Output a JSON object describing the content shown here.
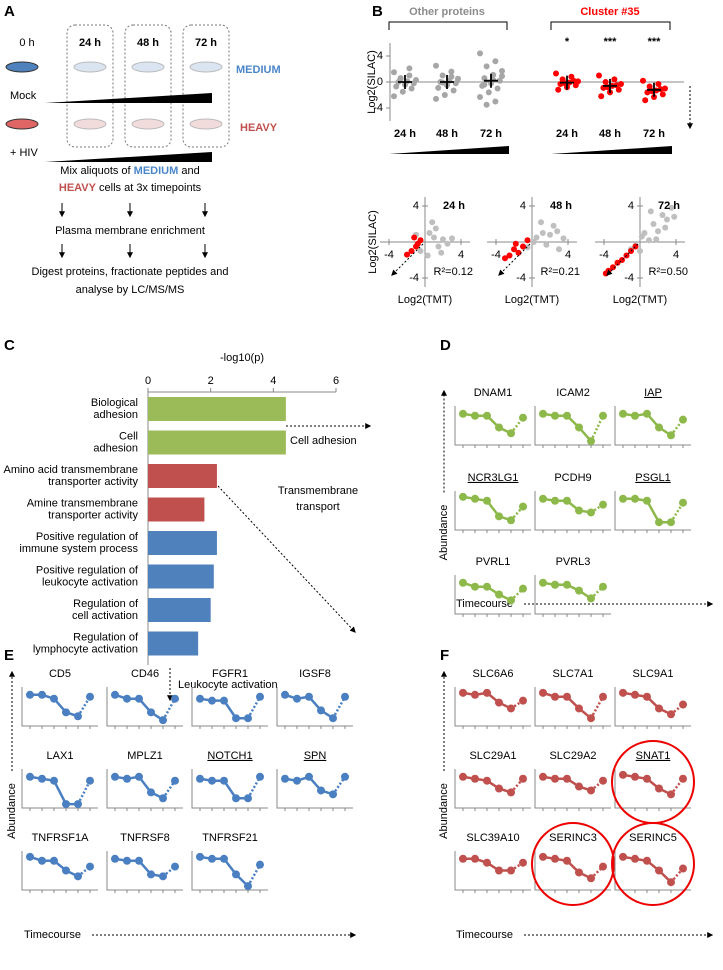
{
  "panel_labels": [
    "A",
    "B",
    "C",
    "D",
    "E",
    "F"
  ],
  "panel_a": {
    "times": [
      "0 h",
      "24 h",
      "48 h",
      "72 h"
    ],
    "conditions": [
      "Mock",
      "+ HIV"
    ],
    "labels": [
      "MEDIUM",
      "HEAVY"
    ],
    "mix_line1": [
      "Mix aliquots of ",
      "MEDIUM",
      " and"
    ],
    "mix_line2": [
      "HEAVY",
      " cells at 3x timepoints"
    ],
    "steps": [
      "Plasma membrane enrichment",
      "Digest proteins, fractionate peptides and",
      "analyse by LC/MS/MS"
    ]
  },
  "chart_data": [
    {
      "type": "strip",
      "y_label": "Log2(SILAC)",
      "ylim": [
        -6,
        6
      ],
      "yticks": [
        -4,
        0,
        4
      ],
      "categories": [
        "24 h",
        "48 h",
        "72 h"
      ],
      "series": [
        {
          "name": "Other proteins",
          "color": "#a6a6a6",
          "values": [
            [
              1.5,
              1,
              0.6,
              0.3,
              0.1,
              0,
              -0.2,
              -0.4,
              -0.7,
              -1,
              -1.5,
              -2.2,
              2.1,
              0.5
            ],
            [
              2.5,
              1.6,
              1,
              0.5,
              0.2,
              0,
              -0.2,
              -0.5,
              -0.9,
              -1.3,
              -2,
              -2.6,
              0.8,
              -0.1
            ],
            [
              4.4,
              3.2,
              2.4,
              1.7,
              1.1,
              0.6,
              0.2,
              -0.2,
              -0.6,
              -1,
              -1.6,
              -2.3,
              -3,
              -3.5,
              0.9,
              0.3,
              -0.4
            ]
          ],
          "means": [
            0,
            0,
            0.2
          ]
        },
        {
          "name": "Cluster #35",
          "color": "#ff0000",
          "values": [
            [
              1.3,
              0.8,
              0.4,
              0.1,
              -0.1,
              -0.3,
              -0.5,
              -0.8,
              -1.2,
              0.2,
              -0.2
            ],
            [
              1,
              0.4,
              0,
              -0.3,
              -0.6,
              -0.9,
              -1.2,
              -1.6,
              -2.2,
              -0.5,
              -0.8
            ],
            [
              0.2,
              -0.3,
              -0.7,
              -1,
              -1.3,
              -1.6,
              -1.9,
              -2.3,
              -2.8,
              -1.1,
              -1.4
            ]
          ],
          "means": [
            -0.1,
            -0.6,
            -1.2
          ],
          "significance": [
            "*",
            "***",
            "***"
          ]
        }
      ]
    },
    {
      "type": "scatter",
      "title": "24 h",
      "annotation": "R²=0.12",
      "x_label": "Log2(TMT)",
      "y_label": "Log2(SILAC)",
      "xlim": [
        -5,
        5
      ],
      "ylim": [
        -5,
        5
      ],
      "xticks": [
        -4,
        4
      ],
      "yticks": [
        -4,
        4
      ],
      "series": [
        {
          "color": "#bfbfbf",
          "x": [
            0.5,
            1,
            1.5,
            2,
            -0.5,
            1.2,
            2.5,
            0.3,
            0.8,
            -1,
            1.8,
            3
          ],
          "y": [
            1,
            0.5,
            -0.5,
            0.3,
            -1,
            1.5,
            -0.2,
            -1.5,
            2.2,
            0.8,
            -1.2,
            0.4
          ]
        },
        {
          "color": "#ff0000",
          "x": [
            -1,
            -1.5,
            -0.5,
            -1.2,
            -2,
            -0.8
          ],
          "y": [
            -0.5,
            -1,
            0.2,
            0.5,
            -1.4,
            -0.2
          ]
        }
      ]
    },
    {
      "type": "scatter",
      "title": "48 h",
      "annotation": "R²=0.21",
      "x_label": "Log2(TMT)",
      "xlim": [
        -5,
        5
      ],
      "ylim": [
        -5,
        5
      ],
      "xticks": [
        -4,
        4
      ],
      "yticks": [
        -4,
        4
      ],
      "series": [
        {
          "color": "#bfbfbf",
          "x": [
            0.5,
            1.2,
            2,
            2.8,
            3.5,
            1,
            1.6,
            -0.5,
            2.4,
            0.2,
            3
          ],
          "y": [
            0.5,
            1,
            0.8,
            1.2,
            0.4,
            2.2,
            -0.3,
            -0.6,
            1.8,
            0,
            -0.8
          ]
        },
        {
          "color": "#ff0000",
          "x": [
            -1,
            -2,
            -2.5,
            -1.5,
            -3,
            -0.5,
            -1.8
          ],
          "y": [
            -0.5,
            -0.8,
            -1.5,
            -1.2,
            -1.8,
            0.2,
            -0.2
          ]
        }
      ]
    },
    {
      "type": "scatter",
      "title": "72 h",
      "annotation": "R²=0.50",
      "x_label": "Log2(TMT)",
      "xlim": [
        -5,
        5
      ],
      "ylim": [
        -5,
        5
      ],
      "xticks": [
        -4,
        4
      ],
      "yticks": [
        -4,
        4
      ],
      "series": [
        {
          "color": "#bfbfbf",
          "x": [
            0.5,
            1.5,
            2.5,
            3.5,
            1,
            2,
            3,
            -0.5,
            0.2,
            1.8,
            2.8,
            3.8,
            0,
            -1,
            1.2
          ],
          "y": [
            1,
            2,
            3,
            3.8,
            0.2,
            1.2,
            2.5,
            -0.4,
            0.6,
            0.3,
            1.6,
            2.8,
            -1,
            -0.8,
            3.4
          ]
        },
        {
          "color": "#ff0000",
          "x": [
            -1,
            -2,
            -3,
            -3.5,
            -1.5,
            -2.5,
            -3.8,
            -0.5
          ],
          "y": [
            -1,
            -2,
            -2.8,
            -3.2,
            -1.5,
            -2.3,
            -3.5,
            -0.5
          ]
        }
      ]
    },
    {
      "type": "bar",
      "orientation": "horizontal",
      "title": "-log10(p)",
      "xlim": [
        0,
        6
      ],
      "xticks": [
        0,
        2,
        4,
        6
      ],
      "categories": [
        [
          "Biological",
          "adhesion"
        ],
        [
          "Cell",
          "adhesion"
        ],
        [
          "Amino acid transmembrane",
          "transporter activity"
        ],
        [
          "Amine transmembrane",
          "transporter activity"
        ],
        [
          "Positive regulation of",
          "immune system process"
        ],
        [
          "Positive regulation of",
          "leukocyte activation"
        ],
        [
          "Regulation of",
          "cell activation"
        ],
        [
          "Regulation of",
          "lymphocyte activation"
        ]
      ],
      "values": [
        4.4,
        4.4,
        2.2,
        1.8,
        2.2,
        2.1,
        2.0,
        1.6
      ],
      "colors": [
        "#9bbb59",
        "#9bbb59",
        "#c0504d",
        "#c0504d",
        "#4f81bd",
        "#4f81bd",
        "#4f81bd",
        "#4f81bd"
      ],
      "annotations": [
        [
          "Cell adhesion"
        ],
        [
          "Transmembrane",
          "transport"
        ],
        [
          "Leukocyte activation"
        ]
      ]
    },
    {
      "type": "line",
      "y_label": "Abundance",
      "x_label": "Timecourse",
      "color": "#8db84a",
      "categories": [
        null,
        null,
        null,
        null,
        null,
        null
      ],
      "ylim": [
        0,
        1
      ],
      "series": [
        {
          "name": "DNAM1",
          "values": [
            0.8,
            0.75,
            0.75,
            0.45,
            0.3,
            0.7
          ]
        },
        {
          "name": "ICAM2",
          "values": [
            0.8,
            0.75,
            0.75,
            0.45,
            0.1,
            0.75
          ]
        },
        {
          "name": "IAP",
          "values": [
            0.8,
            0.75,
            0.8,
            0.45,
            0.25,
            0.65
          ],
          "underline": true
        },
        {
          "name": "NCR3LG1",
          "values": [
            0.85,
            0.8,
            0.75,
            0.35,
            0.25,
            0.6
          ],
          "underline": true
        },
        {
          "name": "PCDH9",
          "values": [
            0.8,
            0.75,
            0.75,
            0.5,
            0.45,
            0.65
          ]
        },
        {
          "name": "PSGL1",
          "values": [
            0.8,
            0.8,
            0.75,
            0.2,
            0.2,
            0.7
          ],
          "underline": true
        },
        {
          "name": "PVRL1",
          "values": [
            0.8,
            0.7,
            0.7,
            0.5,
            0.35,
            0.65
          ]
        },
        {
          "name": "PVRL3",
          "values": [
            0.8,
            0.75,
            0.75,
            0.6,
            0.4,
            0.7
          ]
        }
      ]
    },
    {
      "type": "line",
      "y_label": "Abundance",
      "x_label": "Timecourse",
      "color": "#4a7fc1",
      "categories": [
        null,
        null,
        null,
        null,
        null,
        null
      ],
      "ylim": [
        0,
        1
      ],
      "series": [
        {
          "name": "CD5",
          "values": [
            0.8,
            0.8,
            0.7,
            0.35,
            0.25,
            0.75
          ]
        },
        {
          "name": "CD46",
          "values": [
            0.8,
            0.7,
            0.7,
            0.35,
            0.15,
            0.7
          ]
        },
        {
          "name": "FGFR1",
          "values": [
            0.7,
            0.65,
            0.65,
            0.2,
            0.2,
            0.75
          ]
        },
        {
          "name": "IGSF8",
          "values": [
            0.8,
            0.7,
            0.75,
            0.4,
            0.2,
            0.75
          ]
        },
        {
          "name": "LAX1",
          "values": [
            0.8,
            0.75,
            0.7,
            0.1,
            0.1,
            0.7
          ]
        },
        {
          "name": "MPLZ1",
          "values": [
            0.8,
            0.75,
            0.8,
            0.4,
            0.25,
            0.7
          ]
        },
        {
          "name": "NOTCH1",
          "values": [
            0.75,
            0.7,
            0.7,
            0.25,
            0.25,
            0.8
          ],
          "underline": true
        },
        {
          "name": "SPN",
          "values": [
            0.75,
            0.7,
            0.8,
            0.45,
            0.35,
            0.8
          ],
          "underline": true
        },
        {
          "name": "TNFRSF1A",
          "values": [
            0.85,
            0.75,
            0.75,
            0.5,
            0.35,
            0.6
          ]
        },
        {
          "name": "TNFRSF8",
          "values": [
            0.8,
            0.75,
            0.75,
            0.4,
            0.35,
            0.6
          ]
        },
        {
          "name": "TNFRSF21",
          "values": [
            0.85,
            0.8,
            0.8,
            0.4,
            0.1,
            0.65
          ]
        }
      ]
    },
    {
      "type": "line",
      "y_label": "Abundance",
      "x_label": "Timecourse",
      "color": "#c0504d",
      "categories": [
        null,
        null,
        null,
        null,
        null,
        null
      ],
      "ylim": [
        0,
        1
      ],
      "series": [
        {
          "name": "SLC6A6",
          "values": [
            0.85,
            0.8,
            0.85,
            0.6,
            0.45,
            0.65
          ]
        },
        {
          "name": "SLC7A1",
          "values": [
            0.85,
            0.75,
            0.75,
            0.45,
            0.2,
            0.75
          ]
        },
        {
          "name": "SLC9A1",
          "values": [
            0.85,
            0.8,
            0.75,
            0.45,
            0.3,
            0.55
          ]
        },
        {
          "name": "SLC29A1",
          "values": [
            0.8,
            0.75,
            0.7,
            0.5,
            0.4,
            0.75
          ]
        },
        {
          "name": "SLC29A2",
          "values": [
            0.8,
            0.75,
            0.75,
            0.55,
            0.45,
            0.7
          ]
        },
        {
          "name": "SNAT1",
          "values": [
            0.85,
            0.8,
            0.75,
            0.5,
            0.35,
            0.75
          ],
          "underline": true,
          "circled": true
        },
        {
          "name": "SLC39A10",
          "values": [
            0.8,
            0.8,
            0.7,
            0.5,
            0.5,
            0.7
          ]
        },
        {
          "name": "SERINC3",
          "values": [
            0.85,
            0.8,
            0.75,
            0.45,
            0.3,
            0.6
          ],
          "circled": true
        },
        {
          "name": "SERINC5",
          "values": [
            0.85,
            0.8,
            0.75,
            0.5,
            0.2,
            0.55
          ],
          "circled": true
        }
      ]
    }
  ]
}
